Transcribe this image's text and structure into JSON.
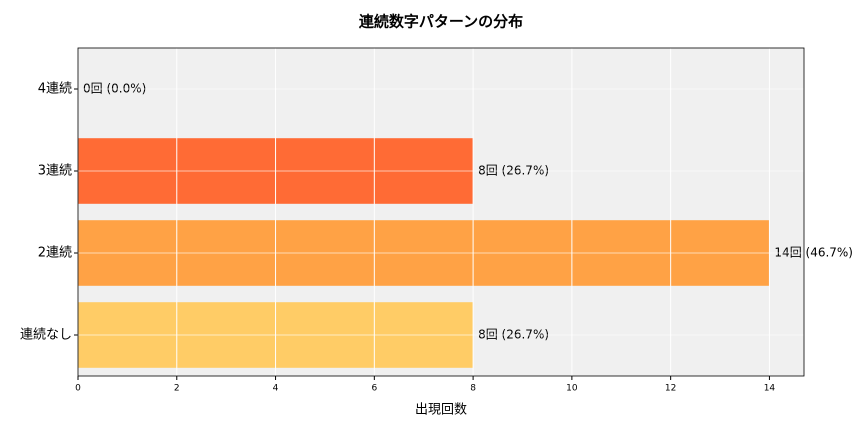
{
  "chart_data": {
    "type": "barh",
    "title": "連続数字パターンの分布",
    "x_label": "出現回数",
    "categories": [
      "4連続",
      "3連続",
      "2連続",
      "連続なし"
    ],
    "values": [
      0,
      8,
      14,
      8
    ],
    "value_labels": [
      "0回 (0.0%)",
      "8回 (26.7%)",
      "14回 (46.7%)",
      "8回 (26.7%)"
    ],
    "colors": [
      "#ff4d4d",
      "#ff6b35",
      "#ffa245",
      "#ffcc66"
    ],
    "xlim": [
      0,
      14.7
    ],
    "xticks": [
      0,
      2,
      4,
      6,
      8,
      10,
      12,
      14
    ],
    "grid": true
  }
}
